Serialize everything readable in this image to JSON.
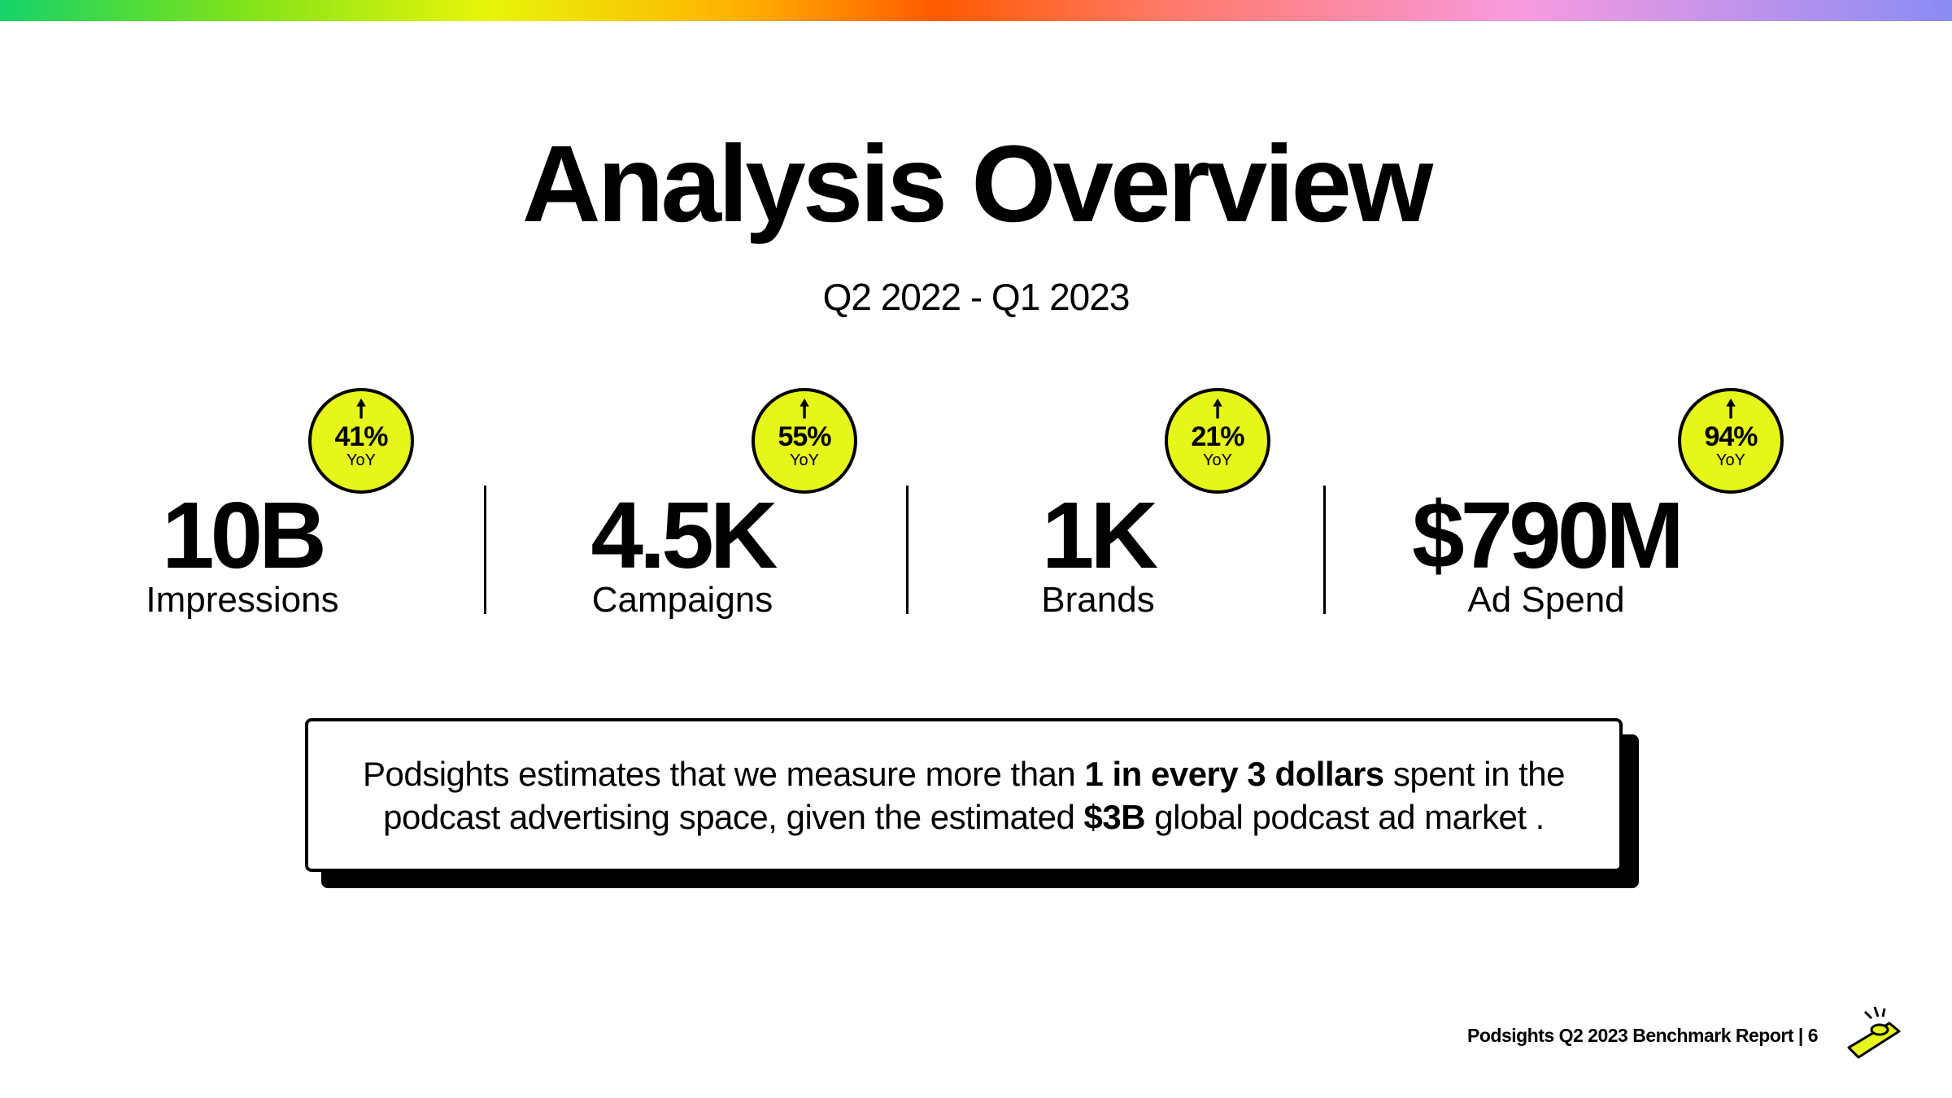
{
  "header": {
    "title": "Analysis Overview",
    "subtitle": "Q2 2022 - Q1 2023"
  },
  "stats": [
    {
      "value": "10B",
      "label": "Impressions",
      "change": "41%",
      "period": "YoY"
    },
    {
      "value": "4.5K",
      "label": "Campaigns",
      "change": "55%",
      "period": "YoY"
    },
    {
      "value": "1K",
      "label": "Brands",
      "change": "21%",
      "period": "YoY"
    },
    {
      "value": "$790M",
      "label": "Ad Spend",
      "change": "94%",
      "period": "YoY"
    }
  ],
  "callout": {
    "segments": [
      {
        "text": "Podsights estimates that we measure more than ",
        "bold": false
      },
      {
        "text": "1 in every 3 dollars",
        "bold": true
      },
      {
        "text": " spent in the podcast advertising space, given the estimated ",
        "bold": false
      },
      {
        "text": "$3B",
        "bold": true
      },
      {
        "text": " global podcast ad market .",
        "bold": false
      }
    ]
  },
  "footer": {
    "text": "Podsights Q2 2023 Benchmark Report | 6"
  }
}
